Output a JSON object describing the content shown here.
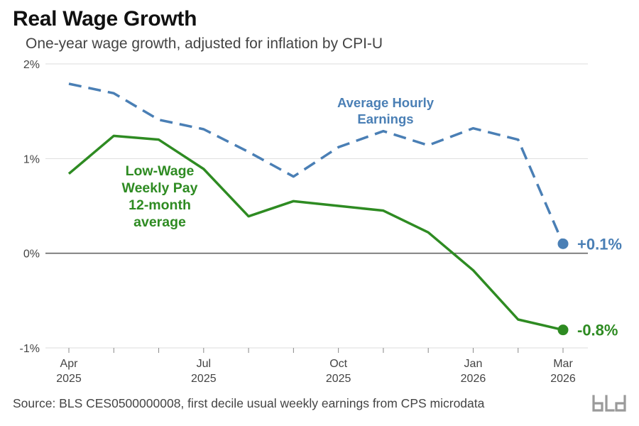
{
  "title": "Real Wage Growth",
  "subtitle": "One-year wage growth, adjusted for inflation by CPI-U",
  "source": "Source: BLS CES0500000008, first decile usual weekly earnings from CPS microdata",
  "colors": {
    "blue": "#4a7fb5",
    "green": "#2e8b22",
    "grid": "#dddddd",
    "zero_line": "#666666"
  },
  "chart_data": {
    "type": "line",
    "x": [
      "2025-04",
      "2025-05",
      "2025-06",
      "2025-07",
      "2025-08",
      "2025-09",
      "2025-10",
      "2025-11",
      "2025-12",
      "2026-01",
      "2026-02",
      "2026-03"
    ],
    "x_tick_labels": [
      {
        "month": "2025-04",
        "line1": "Apr",
        "line2": "2025"
      },
      {
        "month": "2025-07",
        "line1": "Jul",
        "line2": "2025"
      },
      {
        "month": "2025-10",
        "line1": "Oct",
        "line2": "2025"
      },
      {
        "month": "2026-01",
        "line1": "Jan",
        "line2": "2026"
      },
      {
        "month": "2026-03",
        "line1": "Mar",
        "line2": "2026"
      }
    ],
    "y_ticks": [
      {
        "value": -1,
        "label": "-1%"
      },
      {
        "value": 0,
        "label": "0%"
      },
      {
        "value": 1,
        "label": "1%"
      },
      {
        "value": 2,
        "label": "2%"
      }
    ],
    "ylim": [
      -1,
      2
    ],
    "grid": true,
    "series": [
      {
        "name": "Average Hourly Earnings",
        "label_lines": [
          "Average Hourly",
          "Earnings"
        ],
        "style": "dashed",
        "color": "#4a7fb5",
        "values": [
          1.79,
          1.69,
          1.41,
          1.31,
          1.07,
          0.81,
          1.12,
          1.29,
          1.14,
          1.32,
          1.2,
          0.1
        ],
        "end_label": "+0.1%"
      },
      {
        "name": "Low-Wage Weekly Pay 12-month average",
        "label_lines": [
          "Low-Wage",
          "Weekly Pay",
          "12-month",
          "average"
        ],
        "style": "solid",
        "color": "#2e8b22",
        "values": [
          0.84,
          1.24,
          1.2,
          0.89,
          0.39,
          0.55,
          0.5,
          0.45,
          0.22,
          -0.18,
          -0.7,
          -0.81
        ],
        "end_label": "-0.8%"
      }
    ]
  }
}
